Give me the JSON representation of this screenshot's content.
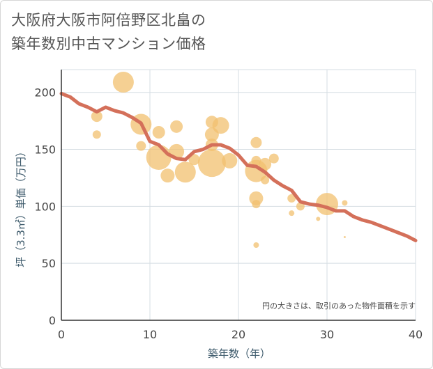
{
  "chart_data": {
    "type": "scatter",
    "title_line1": "大阪府大阪市阿倍野区北畠の",
    "title_line2": "築年数別中古マンション価格",
    "xlabel": "築年数（年）",
    "ylabel": "坪（3.3㎡）単価（万円）",
    "note": "円の大きさは、取引のあった物件面積を示す",
    "xlim": [
      0,
      40
    ],
    "ylim": [
      0,
      220
    ],
    "xticks": [
      0,
      10,
      20,
      30,
      40
    ],
    "yticks": [
      0,
      50,
      100,
      150,
      200
    ],
    "grid": true,
    "colors": {
      "bubble": "#f2c06f",
      "line": "#d4705a",
      "grid": "#d5dde3"
    },
    "points": [
      {
        "x": 4,
        "y": 179,
        "size": 8
      },
      {
        "x": 4,
        "y": 163,
        "size": 6
      },
      {
        "x": 7,
        "y": 209,
        "size": 15
      },
      {
        "x": 9,
        "y": 172,
        "size": 15
      },
      {
        "x": 9,
        "y": 153,
        "size": 7
      },
      {
        "x": 11,
        "y": 165,
        "size": 9
      },
      {
        "x": 11,
        "y": 143,
        "size": 18
      },
      {
        "x": 12,
        "y": 127,
        "size": 10
      },
      {
        "x": 13,
        "y": 170,
        "size": 9
      },
      {
        "x": 13,
        "y": 148,
        "size": 11
      },
      {
        "x": 14,
        "y": 130,
        "size": 15
      },
      {
        "x": 15,
        "y": 141,
        "size": 8
      },
      {
        "x": 17,
        "y": 174,
        "size": 9
      },
      {
        "x": 17,
        "y": 163,
        "size": 10
      },
      {
        "x": 17,
        "y": 154,
        "size": 9
      },
      {
        "x": 17,
        "y": 138,
        "size": 20
      },
      {
        "x": 18,
        "y": 171,
        "size": 12
      },
      {
        "x": 19,
        "y": 140,
        "size": 11
      },
      {
        "x": 22,
        "y": 156,
        "size": 8
      },
      {
        "x": 22,
        "y": 140,
        "size": 7
      },
      {
        "x": 22,
        "y": 131,
        "size": 16
      },
      {
        "x": 22,
        "y": 107,
        "size": 10
      },
      {
        "x": 22,
        "y": 102,
        "size": 6
      },
      {
        "x": 22,
        "y": 66,
        "size": 4
      },
      {
        "x": 23,
        "y": 137,
        "size": 9
      },
      {
        "x": 23,
        "y": 123,
        "size": 6
      },
      {
        "x": 24,
        "y": 142,
        "size": 7
      },
      {
        "x": 26,
        "y": 107,
        "size": 6
      },
      {
        "x": 26,
        "y": 94,
        "size": 4
      },
      {
        "x": 27,
        "y": 100,
        "size": 6
      },
      {
        "x": 29,
        "y": 89,
        "size": 3
      },
      {
        "x": 30,
        "y": 102,
        "size": 16
      },
      {
        "x": 32,
        "y": 103,
        "size": 4
      },
      {
        "x": 32,
        "y": 73,
        "size": 1.5
      }
    ],
    "trend": {
      "x": [
        0,
        1,
        2,
        3,
        4,
        5,
        6,
        7,
        8,
        9,
        10,
        11,
        12,
        13,
        14,
        15,
        16,
        17,
        18,
        19,
        20,
        21,
        22,
        23,
        24,
        25,
        26,
        27,
        28,
        29,
        30,
        31,
        32,
        33,
        34,
        35,
        36,
        37,
        38,
        39,
        40
      ],
      "y": [
        199,
        196,
        190,
        187,
        183,
        187,
        184,
        182,
        178,
        173,
        157,
        154,
        146,
        142,
        141,
        148,
        150,
        154,
        154,
        151,
        145,
        136,
        135,
        130,
        123,
        118,
        114,
        104,
        102,
        101,
        99,
        96,
        96,
        91,
        88,
        86,
        83,
        80,
        77,
        74,
        70
      ]
    }
  }
}
